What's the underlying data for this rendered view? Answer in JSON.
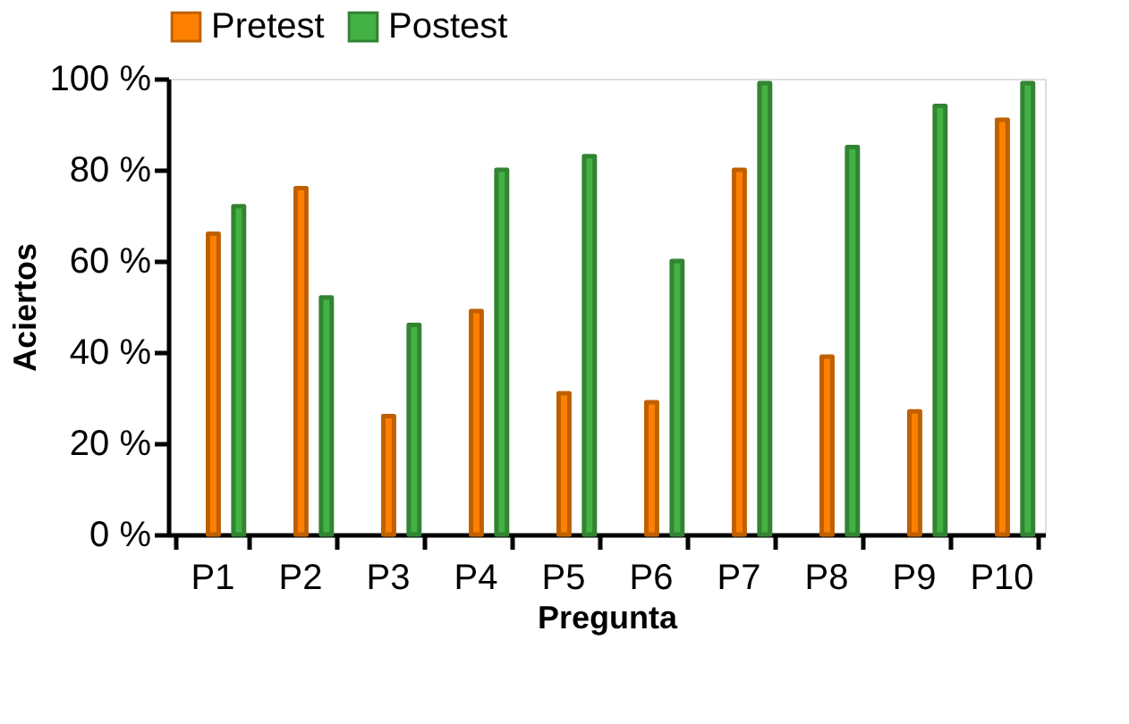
{
  "chart_data": {
    "type": "bar",
    "xlabel": "Pregunta",
    "ylabel": "Aciertos",
    "categories": [
      "P1",
      "P2",
      "P3",
      "P4",
      "P5",
      "P6",
      "P7",
      "P8",
      "P9",
      "P10"
    ],
    "series": [
      {
        "name": "Pretest",
        "color": "#ff8000",
        "values": [
          66,
          76,
          26,
          49,
          31,
          29,
          80,
          39,
          27,
          91
        ]
      },
      {
        "name": "Postest",
        "color": "#43b143",
        "values": [
          72,
          52,
          46,
          80,
          83,
          60,
          99,
          85,
          94,
          99
        ]
      }
    ],
    "ylim": [
      0,
      100
    ],
    "yticks": [
      {
        "value": 0,
        "label": "0 %"
      },
      {
        "value": 20,
        "label": "20 %"
      },
      {
        "value": 40,
        "label": "40 %"
      },
      {
        "value": 60,
        "label": "60 %"
      },
      {
        "value": 80,
        "label": "80 %"
      },
      {
        "value": 100,
        "label": "100 %"
      }
    ],
    "grid": false,
    "legend": "top"
  }
}
